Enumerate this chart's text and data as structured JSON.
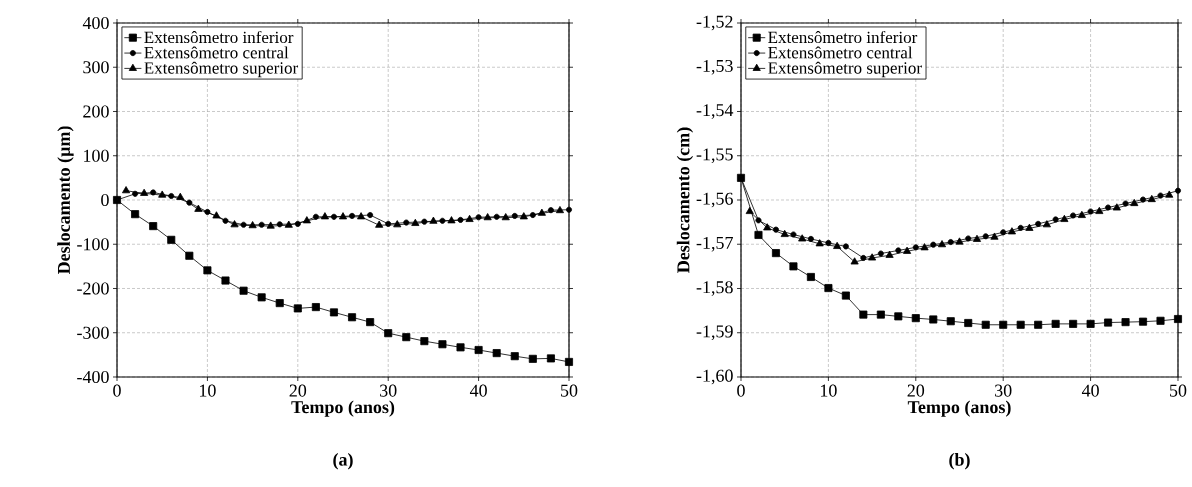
{
  "chart_data": [
    {
      "type": "line",
      "xlabel": "Tempo (anos)",
      "ylabel": "Deslocamento (µm)",
      "annotations": [
        "(a)"
      ],
      "x": [
        0,
        2,
        4,
        6,
        8,
        10,
        12,
        14,
        16,
        18,
        20,
        22,
        24,
        26,
        28,
        30,
        32,
        34,
        36,
        38,
        40,
        42,
        44,
        46,
        48,
        50
      ],
      "xlim": [
        0,
        50
      ],
      "xticks": [
        0,
        10,
        20,
        30,
        40,
        50
      ],
      "ylim": [
        -400,
        400
      ],
      "yticks": [
        -400,
        -300,
        -200,
        -100,
        0,
        100,
        200,
        300,
        400
      ],
      "grid": true,
      "legend": "top left",
      "line_style": "solid",
      "series": [
        {
          "name": "Extensômetro inferior",
          "color": "#000000",
          "marker": "square",
          "values": [
            0,
            -32,
            -59,
            -90,
            -126,
            -159,
            -182,
            -205,
            -220,
            -233,
            -245,
            -242,
            -254,
            -265,
            -276,
            -301,
            -310,
            -319,
            -326,
            -333,
            -339,
            -346,
            -353,
            -359,
            -358,
            -366
          ]
        },
        {
          "name": "Extensômetro central",
          "color": "#000000",
          "marker": "circle",
          "values": [
            0,
            14,
            17,
            9,
            -6,
            -27,
            -47,
            -56,
            -56,
            -55,
            -54,
            -38,
            -38,
            -36,
            -34,
            -54,
            -51,
            -49,
            -47,
            -45,
            -39,
            -38,
            -36,
            -34,
            -23,
            -22
          ]
        },
        {
          "name": "Extensômetro superior",
          "color": "#000000",
          "marker": "triangle",
          "x": [
            1,
            3,
            5,
            7,
            9,
            11,
            13,
            15,
            17,
            19,
            21,
            23,
            25,
            27,
            29,
            31,
            33,
            35,
            37,
            39,
            41,
            43,
            45,
            47,
            49
          ],
          "values": [
            21,
            15,
            11,
            6,
            -21,
            -36,
            -56,
            -58,
            -59,
            -57,
            -47,
            -38,
            -38,
            -38,
            -57,
            -56,
            -53,
            -48,
            -47,
            -44,
            -40,
            -40,
            -38,
            -30,
            -24
          ]
        }
      ]
    },
    {
      "type": "line",
      "xlabel": "Tempo (anos)",
      "ylabel": "Deslocamento (cm)",
      "annotations": [
        "(b)"
      ],
      "x": [
        0,
        2,
        4,
        6,
        8,
        10,
        12,
        14,
        16,
        18,
        20,
        22,
        24,
        26,
        28,
        30,
        32,
        34,
        36,
        38,
        40,
        42,
        44,
        46,
        48,
        50
      ],
      "xlim": [
        0,
        50
      ],
      "xticks": [
        0,
        10,
        20,
        30,
        40,
        50
      ],
      "ylim": [
        -1.6,
        -1.52
      ],
      "yticks": [
        {
          "value": -1.6,
          "label": "-1,60"
        },
        {
          "value": -1.59,
          "label": "-1,59"
        },
        {
          "value": -1.58,
          "label": "-1,58"
        },
        {
          "value": -1.57,
          "label": "-1,57"
        },
        {
          "value": -1.56,
          "label": "-1,56"
        },
        {
          "value": -1.55,
          "label": "-1,55"
        },
        {
          "value": -1.54,
          "label": "-1,54"
        },
        {
          "value": -1.53,
          "label": "-1,53"
        },
        {
          "value": -1.52,
          "label": "-1,52"
        }
      ],
      "grid": true,
      "legend": "top left",
      "line_style": "solid",
      "series": [
        {
          "name": "Extensômetro inferior",
          "color": "#000000",
          "marker": "square",
          "values": [
            -1.555,
            -1.5679,
            -1.572,
            -1.575,
            -1.5774,
            -1.5799,
            -1.5816,
            -1.5859,
            -1.5859,
            -1.5863,
            -1.5867,
            -1.587,
            -1.5874,
            -1.5878,
            -1.5882,
            -1.5882,
            -1.5882,
            -1.5882,
            -1.588,
            -1.588,
            -1.588,
            -1.5877,
            -1.5876,
            -1.5875,
            -1.5873,
            -1.5869
          ]
        },
        {
          "name": "Extensômetro central",
          "color": "#000000",
          "marker": "circle",
          "values": [
            -1.555,
            -1.5646,
            -1.5667,
            -1.5678,
            -1.5688,
            -1.5697,
            -1.5705,
            -1.5731,
            -1.5721,
            -1.5714,
            -1.5707,
            -1.5701,
            -1.5695,
            -1.5687,
            -1.5682,
            -1.5673,
            -1.5663,
            -1.5654,
            -1.5644,
            -1.5635,
            -1.5626,
            -1.5617,
            -1.5608,
            -1.5599,
            -1.559,
            -1.5579
          ]
        },
        {
          "name": "Extensômetro superior",
          "color": "#000000",
          "marker": "triangle",
          "x": [
            1,
            3,
            5,
            7,
            9,
            11,
            13,
            15,
            17,
            19,
            21,
            23,
            25,
            27,
            29,
            31,
            33,
            35,
            37,
            39,
            41,
            43,
            45,
            47,
            49
          ],
          "values": [
            -1.5626,
            -1.5663,
            -1.5678,
            -1.5688,
            -1.5699,
            -1.5705,
            -1.574,
            -1.5731,
            -1.5725,
            -1.5716,
            -1.5708,
            -1.5701,
            -1.5695,
            -1.5689,
            -1.5684,
            -1.5672,
            -1.5664,
            -1.5656,
            -1.5644,
            -1.5635,
            -1.5626,
            -1.5618,
            -1.5608,
            -1.5599,
            -1.5589
          ]
        }
      ]
    }
  ]
}
